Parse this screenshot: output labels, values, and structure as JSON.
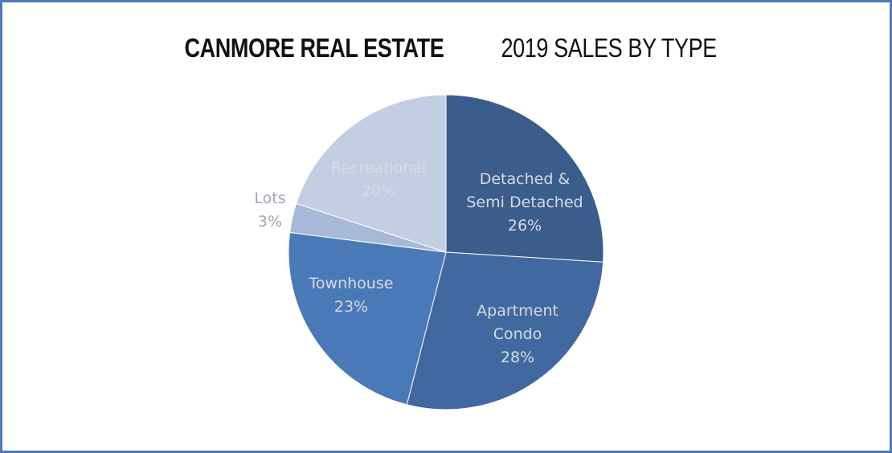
{
  "title": {
    "bold": "CANMORE REAL ESTATE",
    "light": "2019 SALES BY TYPE"
  },
  "chart_data": {
    "type": "pie",
    "title": "CANMORE REAL ESTATE 2019 SALES BY TYPE",
    "slices": [
      {
        "name": "Detached &\nSemi Detached",
        "value": 26,
        "label": "26%",
        "color": "#3a5d8c"
      },
      {
        "name": "Apartment\nCondo",
        "value": 28,
        "label": "28%",
        "color": "#4169a0"
      },
      {
        "name": "Townhouse",
        "value": 23,
        "label": "23%",
        "color": "#4a79b7"
      },
      {
        "name": "Lots",
        "value": 3,
        "label": "3%",
        "color": "#a6b9d9"
      },
      {
        "name": "Recreational",
        "value": 20,
        "label": "20%",
        "color": "#c2cfe3"
      }
    ],
    "start_angle_deg": 0,
    "direction": "clockwise"
  }
}
